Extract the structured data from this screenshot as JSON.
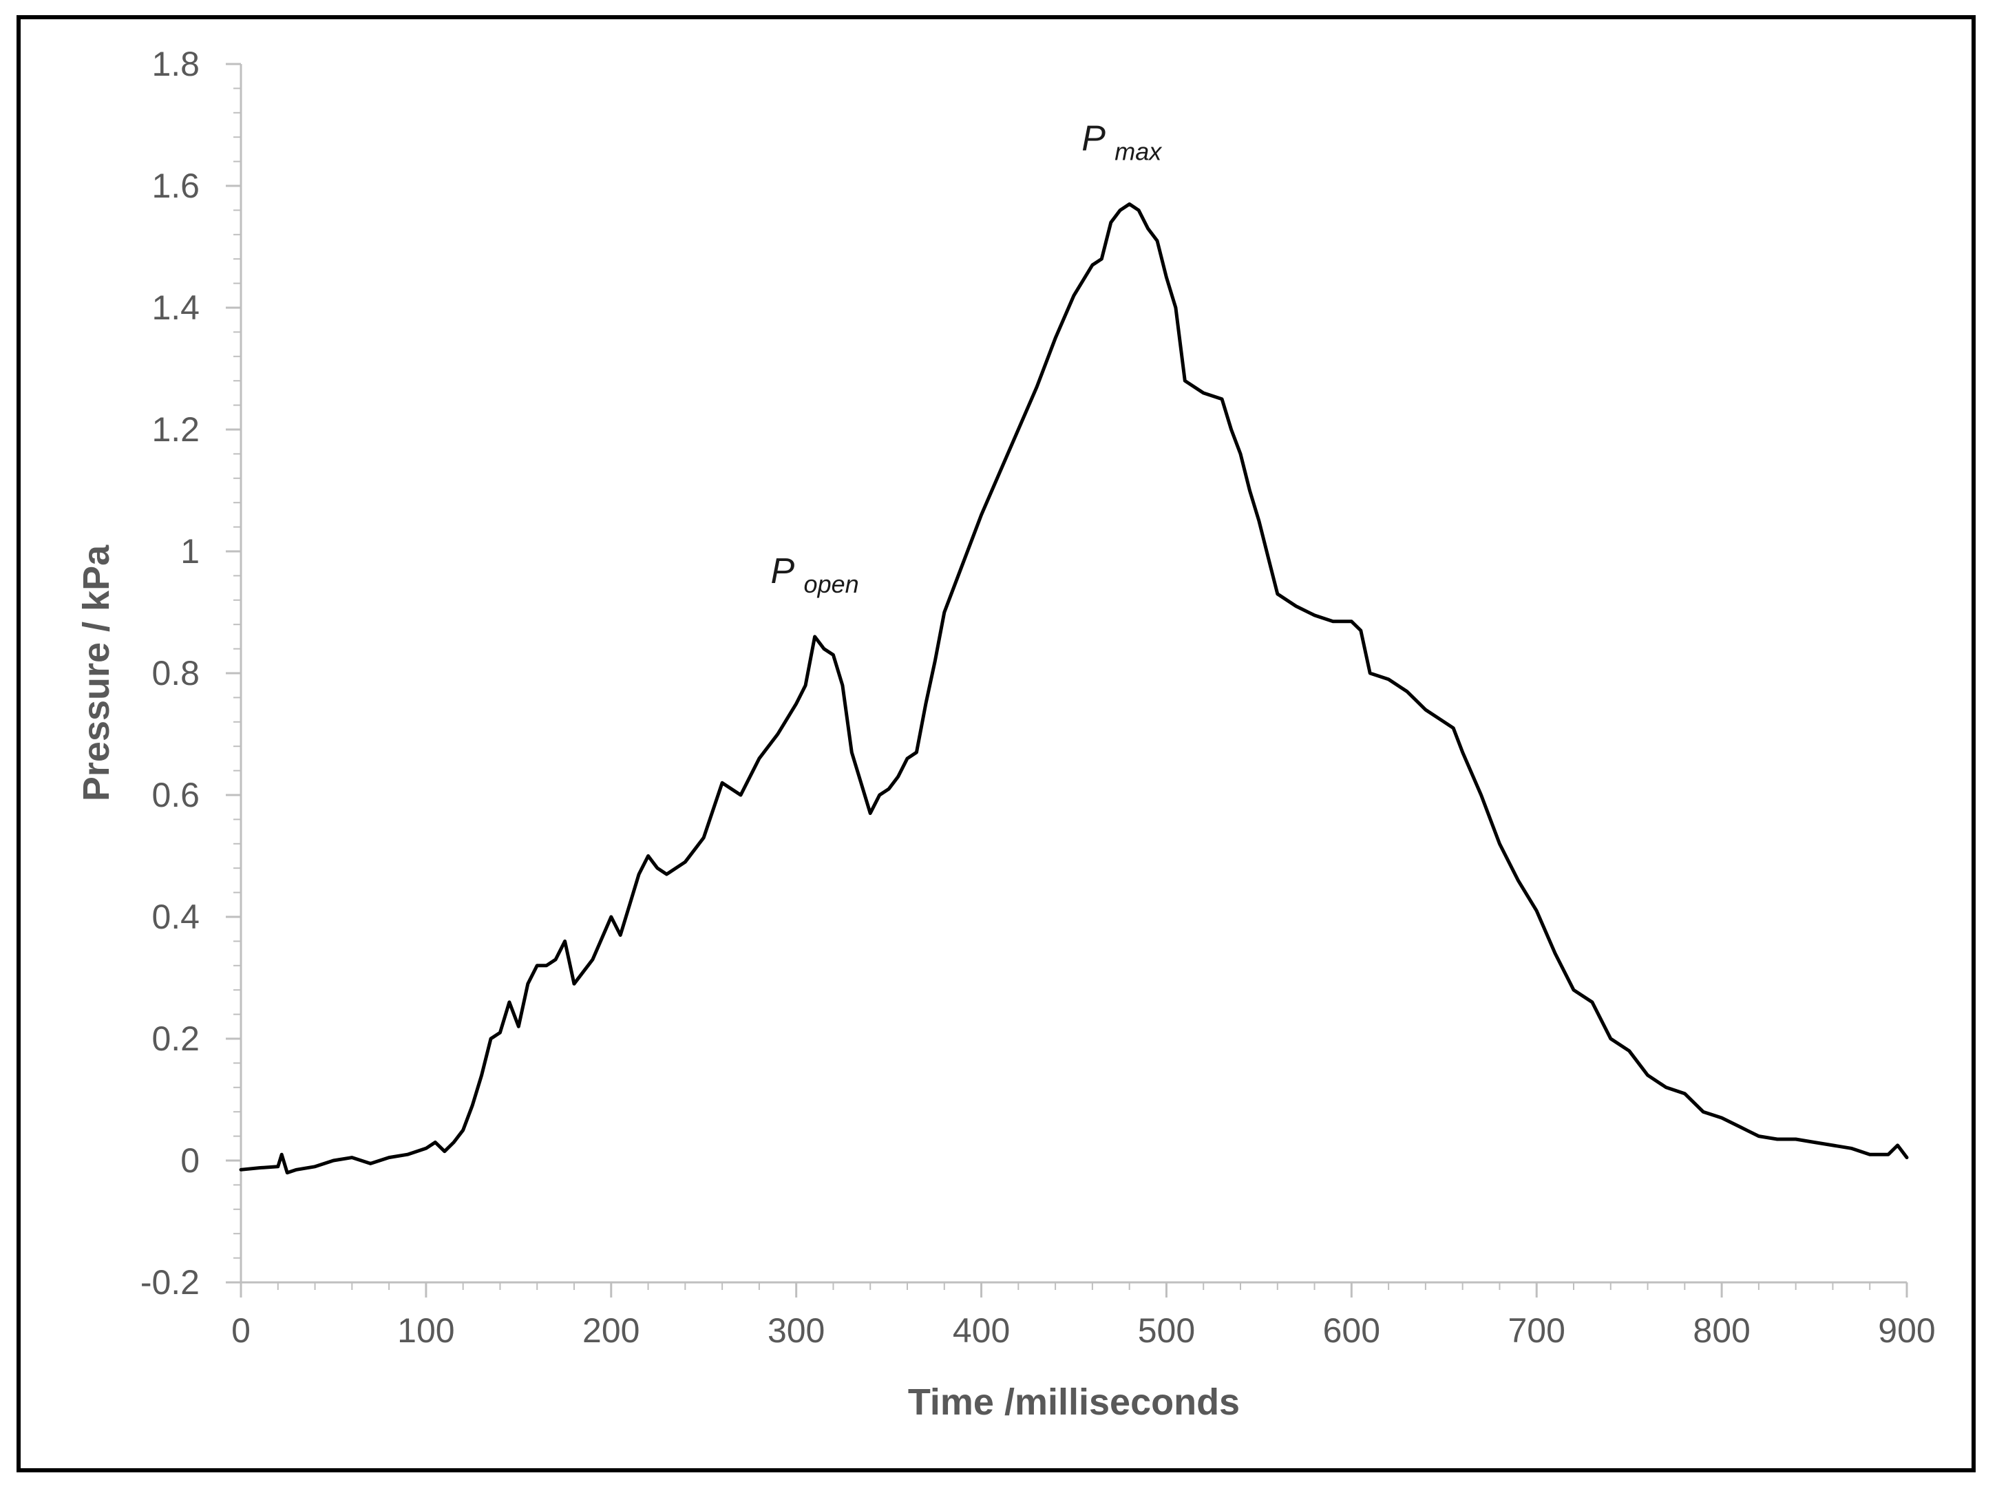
{
  "chart_data": {
    "type": "line",
    "xlabel": "Time /milliseconds",
    "ylabel": "Pressure / kPa",
    "xlim": [
      0,
      900
    ],
    "ylim": [
      -0.2,
      1.8
    ],
    "x_ticks": [
      0,
      100,
      200,
      300,
      400,
      500,
      600,
      700,
      800,
      900
    ],
    "y_ticks": [
      -0.2,
      0,
      0.2,
      0.4,
      0.6,
      0.8,
      1,
      1.2,
      1.4,
      1.6,
      1.8
    ],
    "x_tick_labels": [
      "0",
      "100",
      "200",
      "300",
      "400",
      "500",
      "600",
      "700",
      "800",
      "900"
    ],
    "y_tick_labels": [
      "-0.2",
      "0",
      "0.2",
      "0.4",
      "0.6",
      "0.8",
      "1",
      "1.2",
      "1.4",
      "1.6",
      "1.8"
    ],
    "grid": false,
    "line_color": "#000000",
    "series": [
      {
        "x": [
          0,
          10,
          20,
          22,
          25,
          30,
          40,
          50,
          60,
          70,
          80,
          90,
          100,
          105,
          110,
          115,
          120,
          125,
          130,
          135,
          140,
          145,
          150,
          155,
          160,
          165,
          170,
          175,
          180,
          190,
          200,
          205,
          210,
          215,
          220,
          225,
          230,
          240,
          250,
          260,
          270,
          280,
          290,
          300,
          305,
          310,
          315,
          320,
          325,
          330,
          335,
          340,
          345,
          350,
          355,
          360,
          365,
          370,
          375,
          380,
          390,
          400,
          410,
          420,
          430,
          440,
          450,
          460,
          465,
          470,
          475,
          480,
          485,
          490,
          495,
          500,
          505,
          510,
          520,
          530,
          535,
          540,
          545,
          550,
          555,
          560,
          570,
          580,
          590,
          600,
          605,
          610,
          620,
          630,
          640,
          650,
          655,
          660,
          670,
          680,
          690,
          700,
          710,
          720,
          730,
          740,
          750,
          760,
          770,
          780,
          790,
          800,
          810,
          820,
          830,
          840,
          850,
          860,
          870,
          880,
          890,
          895,
          900
        ],
        "values": [
          -0.015,
          -0.012,
          -0.01,
          0.01,
          -0.02,
          -0.015,
          -0.01,
          0.0,
          0.005,
          -0.005,
          0.005,
          0.01,
          0.02,
          0.03,
          0.015,
          0.03,
          0.05,
          0.09,
          0.14,
          0.2,
          0.21,
          0.26,
          0.22,
          0.29,
          0.32,
          0.32,
          0.33,
          0.36,
          0.29,
          0.33,
          0.4,
          0.37,
          0.42,
          0.47,
          0.5,
          0.48,
          0.47,
          0.49,
          0.53,
          0.62,
          0.6,
          0.66,
          0.7,
          0.75,
          0.78,
          0.86,
          0.84,
          0.83,
          0.78,
          0.67,
          0.62,
          0.57,
          0.6,
          0.61,
          0.63,
          0.66,
          0.67,
          0.75,
          0.82,
          0.9,
          0.98,
          1.06,
          1.13,
          1.2,
          1.27,
          1.35,
          1.42,
          1.47,
          1.48,
          1.54,
          1.56,
          1.57,
          1.56,
          1.53,
          1.51,
          1.45,
          1.4,
          1.28,
          1.26,
          1.25,
          1.2,
          1.16,
          1.1,
          1.05,
          0.99,
          0.93,
          0.91,
          0.895,
          0.885,
          0.885,
          0.87,
          0.8,
          0.79,
          0.77,
          0.74,
          0.72,
          0.71,
          0.67,
          0.6,
          0.52,
          0.46,
          0.41,
          0.34,
          0.28,
          0.26,
          0.2,
          0.18,
          0.14,
          0.12,
          0.11,
          0.08,
          0.07,
          0.055,
          0.04,
          0.035,
          0.035,
          0.03,
          0.025,
          0.02,
          0.01,
          0.01,
          0.025,
          0.005
        ]
      }
    ],
    "annotations": [
      {
        "main": "P",
        "sub": "open",
        "x": 310,
        "y": 0.86
      },
      {
        "main": "P",
        "sub": "max",
        "x": 478,
        "y": 1.57
      }
    ]
  }
}
